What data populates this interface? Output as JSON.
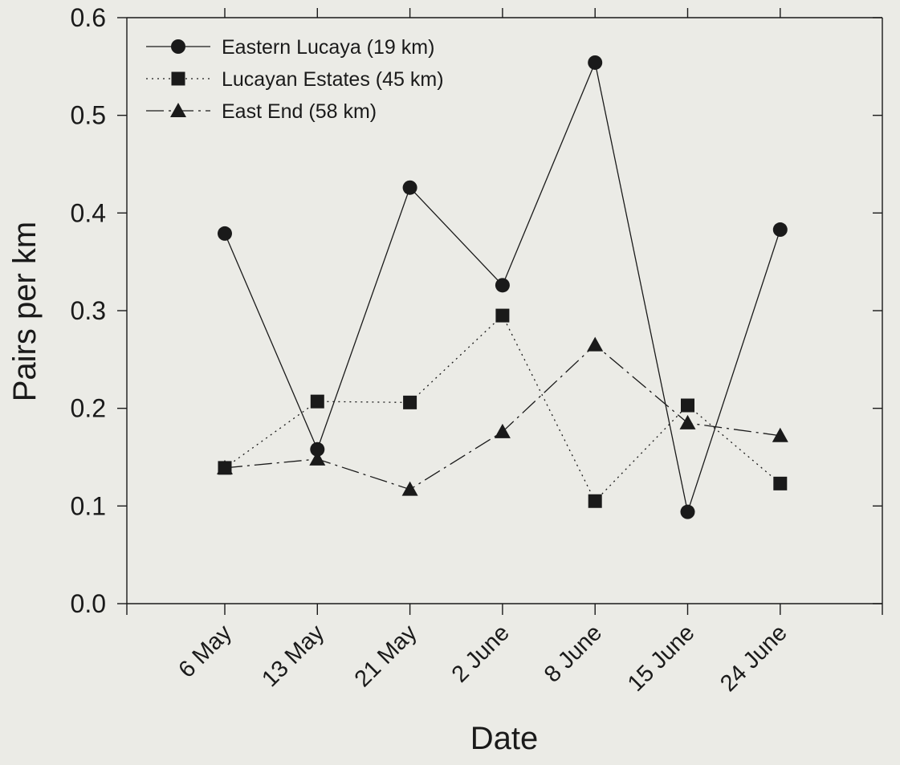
{
  "chart_data": {
    "type": "line",
    "xlabel": "Date",
    "ylabel": "Pairs per km",
    "categories": [
      "6 May",
      "13 May",
      "21 May",
      "2 June",
      "8 June",
      "15 June",
      "24 June"
    ],
    "ylim": [
      0.0,
      0.6
    ],
    "yticks": [
      "0.0",
      "0.1",
      "0.2",
      "0.3",
      "0.4",
      "0.5",
      "0.6"
    ],
    "grid": false,
    "legend_position": "top-left",
    "series": [
      {
        "name": "Eastern Lucaya (19 km)",
        "marker": "circle",
        "line_style": "solid",
        "values": [
          0.379,
          0.158,
          0.426,
          0.326,
          0.554,
          0.094,
          0.383
        ]
      },
      {
        "name": "Lucayan Estates (45 km)",
        "marker": "square",
        "line_style": "dotted",
        "values": [
          0.139,
          0.207,
          0.206,
          0.295,
          0.105,
          0.203,
          0.123
        ]
      },
      {
        "name": "East End (58 km)",
        "marker": "triangle",
        "line_style": "dash-dot",
        "values": [
          0.139,
          0.148,
          0.117,
          0.176,
          0.265,
          0.185,
          0.172
        ]
      }
    ],
    "colors": {
      "ink": "#1a1a1a",
      "background": "#ebebe6"
    }
  }
}
